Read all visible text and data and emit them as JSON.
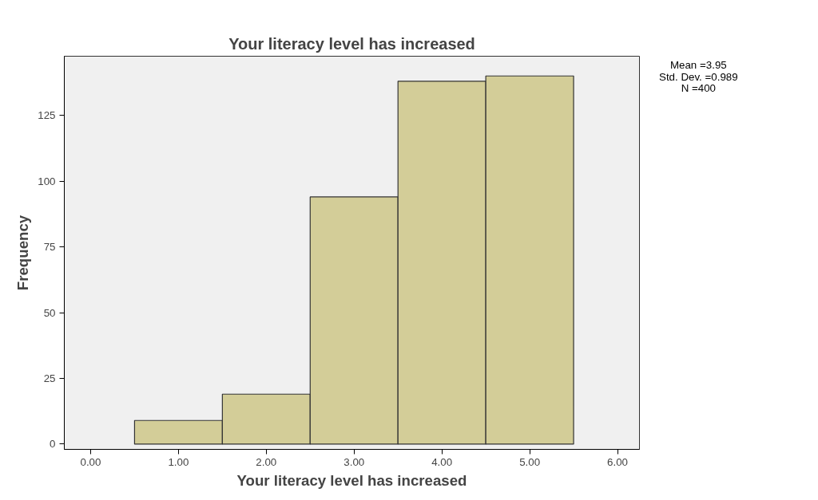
{
  "chart_data": {
    "type": "histogram",
    "title": "Your literacy level has increased",
    "xlabel": "Your literacy level has increased",
    "ylabel": "Frequency",
    "bins": [
      0.5,
      1.5,
      2.5,
      3.5,
      4.5,
      5.5
    ],
    "values": [
      9,
      19,
      94,
      138,
      140
    ],
    "color": "#d3cd98",
    "xlim": [
      -0.3,
      6.25
    ],
    "ylim": [
      -2,
      147.5
    ],
    "xticks": [
      {
        "value": 0,
        "label": "0.00"
      },
      {
        "value": 1,
        "label": "1.00"
      },
      {
        "value": 2,
        "label": "2.00"
      },
      {
        "value": 3,
        "label": "3.00"
      },
      {
        "value": 4,
        "label": "4.00"
      },
      {
        "value": 5,
        "label": "5.00"
      },
      {
        "value": 6,
        "label": "6.00"
      }
    ],
    "yticks": [
      0,
      25,
      50,
      75,
      100,
      125
    ],
    "grid": false,
    "annotations": [
      "Mean =3.95",
      "Std. Dev. =0.989",
      "N =400"
    ]
  }
}
